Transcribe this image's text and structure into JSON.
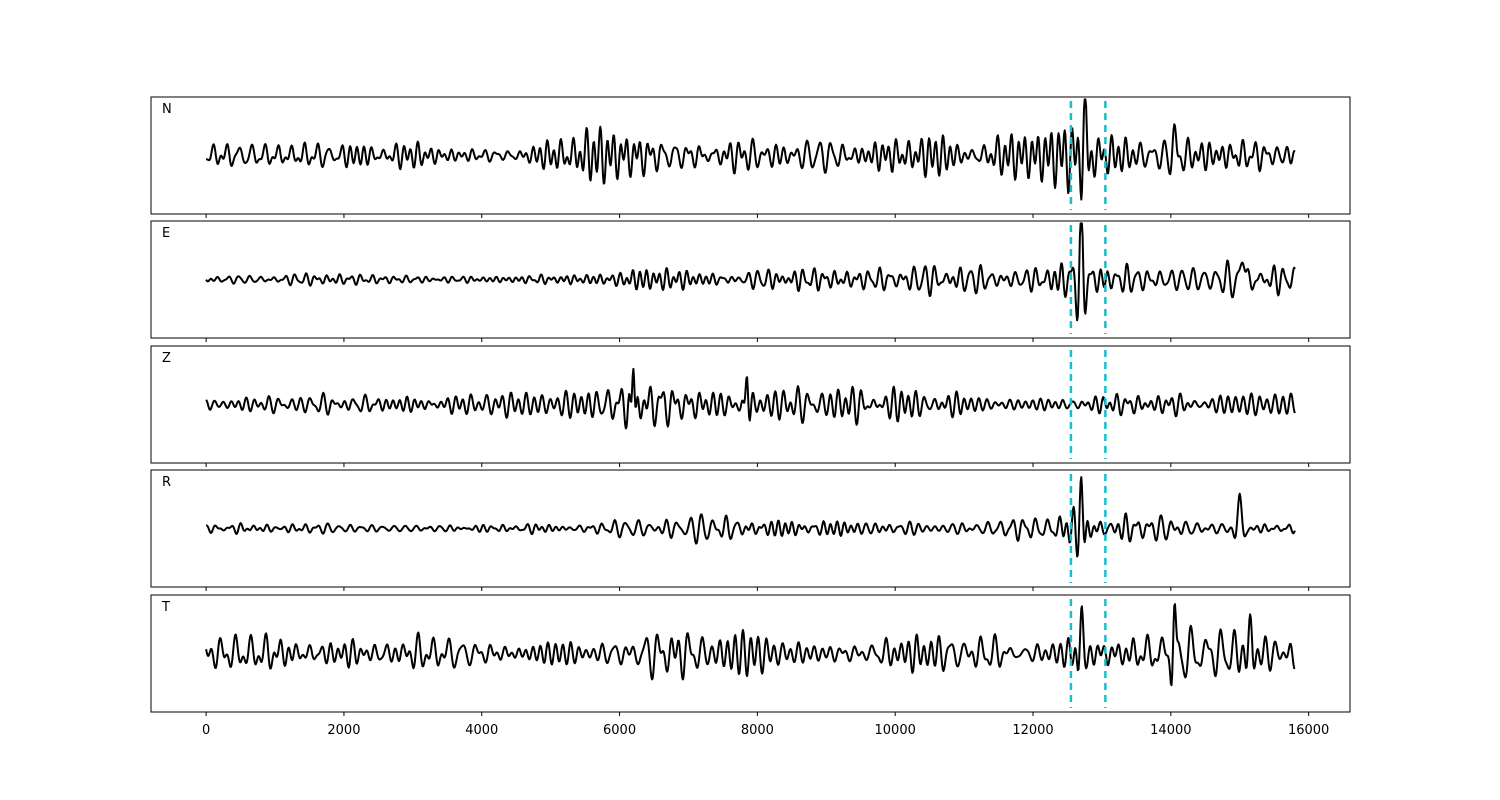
{
  "chart_data": {
    "type": "line",
    "description_note": "",
    "panels": [
      {
        "name": "N",
        "label": "N",
        "seed": 11,
        "env": [
          [
            0,
            0.35
          ],
          [
            1000,
            0.45
          ],
          [
            3000,
            0.38
          ],
          [
            4300,
            0.18
          ],
          [
            6000,
            0.55
          ],
          [
            8000,
            0.55
          ],
          [
            8850,
            0.62
          ],
          [
            10000,
            0.5
          ],
          [
            12000,
            0.55
          ],
          [
            12700,
            0.85
          ],
          [
            13000,
            0.5
          ],
          [
            14000,
            0.6
          ],
          [
            15500,
            0.65
          ],
          [
            15800,
            0.55
          ]
        ],
        "events": [
          {
            "x": 12750,
            "a": 0.9,
            "w": 60
          },
          {
            "x": 14050,
            "a": 0.55,
            "w": 60
          }
        ]
      },
      {
        "name": "E",
        "label": "E",
        "seed": 23,
        "env": [
          [
            0,
            0.12
          ],
          [
            3000,
            0.15
          ],
          [
            6000,
            0.18
          ],
          [
            6200,
            0.45
          ],
          [
            8000,
            0.35
          ],
          [
            10000,
            0.28
          ],
          [
            12000,
            0.3
          ],
          [
            12600,
            0.6
          ],
          [
            13000,
            0.35
          ],
          [
            14500,
            0.35
          ],
          [
            15100,
            0.5
          ],
          [
            15800,
            0.3
          ]
        ],
        "events": [
          {
            "x": 12700,
            "a": 1.0,
            "w": 55
          },
          {
            "x": 15050,
            "a": 0.8,
            "w": 70
          }
        ]
      },
      {
        "name": "Z",
        "label": "Z",
        "seed": 37,
        "env": [
          [
            0,
            0.2
          ],
          [
            2000,
            0.25
          ],
          [
            5000,
            0.25
          ],
          [
            6100,
            0.6
          ],
          [
            7000,
            0.55
          ],
          [
            8000,
            0.55
          ],
          [
            9000,
            0.4
          ],
          [
            10000,
            0.4
          ],
          [
            12000,
            0.3
          ],
          [
            13000,
            0.3
          ],
          [
            15800,
            0.28
          ]
        ],
        "events": [
          {
            "x": 6200,
            "a": 0.95,
            "w": 40
          },
          {
            "x": 7850,
            "a": 0.75,
            "w": 45
          }
        ]
      },
      {
        "name": "R",
        "label": "R",
        "seed": 53,
        "env": [
          [
            0,
            0.12
          ],
          [
            3000,
            0.12
          ],
          [
            5800,
            0.14
          ],
          [
            6200,
            0.35
          ],
          [
            8000,
            0.35
          ],
          [
            10000,
            0.25
          ],
          [
            12000,
            0.28
          ],
          [
            12600,
            0.55
          ],
          [
            13000,
            0.35
          ],
          [
            14800,
            0.35
          ],
          [
            15100,
            0.4
          ],
          [
            15800,
            0.3
          ]
        ],
        "events": [
          {
            "x": 12700,
            "a": 0.95,
            "w": 55
          },
          {
            "x": 15000,
            "a": 0.75,
            "w": 70
          }
        ]
      },
      {
        "name": "T",
        "label": "T",
        "seed": 71,
        "env": [
          [
            0,
            0.35
          ],
          [
            1000,
            0.45
          ],
          [
            3000,
            0.38
          ],
          [
            4300,
            0.2
          ],
          [
            6000,
            0.5
          ],
          [
            8000,
            0.5
          ],
          [
            10000,
            0.45
          ],
          [
            12000,
            0.45
          ],
          [
            12700,
            0.8
          ],
          [
            13200,
            0.45
          ],
          [
            14100,
            0.6
          ],
          [
            15500,
            0.6
          ],
          [
            15800,
            0.5
          ]
        ],
        "events": [
          {
            "x": 12700,
            "a": 0.9,
            "w": 55
          },
          {
            "x": 14050,
            "a": 0.95,
            "w": 45
          },
          {
            "x": 15150,
            "a": 0.6,
            "w": 60
          }
        ]
      }
    ],
    "x": {
      "start": 0,
      "end": 15800,
      "step": 10,
      "lim": [
        -800,
        16600
      ]
    },
    "y": {
      "lim": [
        -1.2,
        1.2
      ]
    },
    "xticks": [
      0,
      2000,
      4000,
      6000,
      8000,
      10000,
      12000,
      14000,
      16000
    ],
    "xtick_labels": [
      "0",
      "2000",
      "4000",
      "6000",
      "8000",
      "10000",
      "12000",
      "14000",
      "16000"
    ],
    "picks": [
      12550,
      13050
    ],
    "colors": {
      "trace": "#000000",
      "pick": "#17becf"
    },
    "grid": false,
    "legend": "none"
  }
}
